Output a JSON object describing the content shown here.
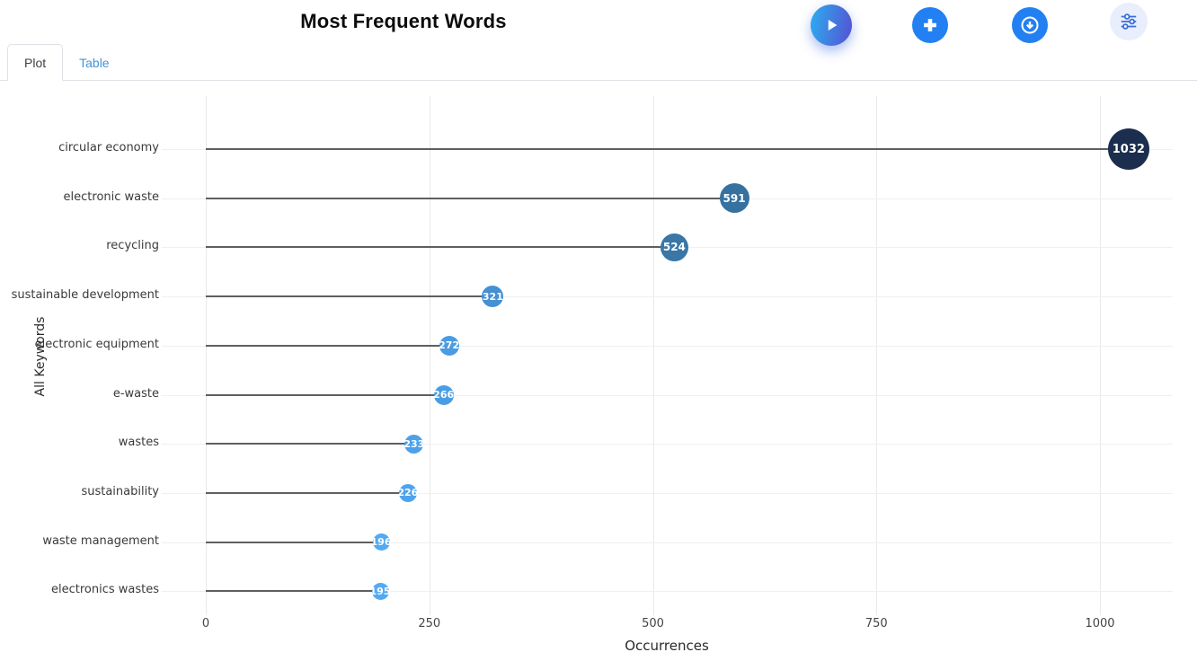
{
  "header": {
    "title": "Most Frequent Words",
    "buttons": [
      {
        "id": "run",
        "icon": "play-icon",
        "bg": [
          "#2fa9ef",
          "#5650d2"
        ]
      },
      {
        "id": "add",
        "icon": "plus-icon",
        "bg": "#2380f2"
      },
      {
        "id": "download",
        "icon": "download-icon",
        "bg": "#2380f2"
      },
      {
        "id": "settings",
        "icon": "sliders-icon",
        "bg": "#e9eefc",
        "fg": "#3b6fd8"
      }
    ]
  },
  "tabs": [
    {
      "label": "Plot",
      "active": true
    },
    {
      "label": "Table",
      "active": false
    }
  ],
  "chart_data": {
    "type": "bar",
    "variant": "horizontal-lollipop",
    "title": "Most Frequent Words",
    "xlabel": "Occurrences",
    "ylabel": "All Keywords",
    "categories": [
      "circular economy",
      "electronic waste",
      "recycling",
      "sustainable development",
      "electronic equipment",
      "e-waste",
      "wastes",
      "sustainability",
      "waste management",
      "electronics wastes"
    ],
    "values": [
      1032,
      591,
      524,
      321,
      272,
      266,
      233,
      226,
      196,
      195
    ],
    "xticks": [
      0,
      250,
      500,
      750,
      1000
    ],
    "xlim": [
      0,
      1080
    ],
    "grid": true,
    "legend": "none",
    "marker_colors": [
      "#1b2e4d",
      "#36719f",
      "#3a76a6",
      "#4590d3",
      "#4a9be1",
      "#4b9de3",
      "#4ca1e9",
      "#4ea4ec",
      "#53aaf3",
      "#53aaf3"
    ],
    "marker_sizes": [
      46,
      33,
      31,
      24,
      22,
      22,
      21,
      20,
      19,
      19
    ],
    "stem_color": "#5f5f5f",
    "grid_color_vertical": "#e9e9e9",
    "grid_color_horizontal": "#f0f0f0"
  }
}
